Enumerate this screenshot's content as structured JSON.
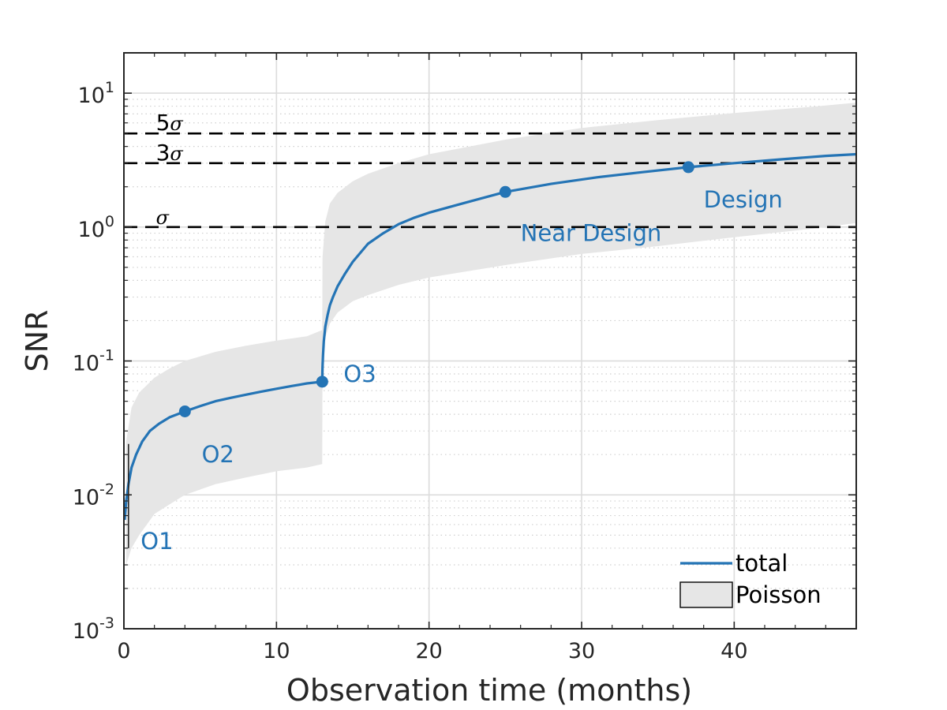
{
  "chart_data": {
    "type": "line",
    "xlabel": "Observation time (months)",
    "ylabel": "SNR",
    "xlim": [
      0,
      48
    ],
    "ylim": [
      0.001,
      20
    ],
    "yscale": "log",
    "grid": true,
    "x_ticks": [
      0,
      10,
      20,
      30,
      40
    ],
    "x_tick_labels": [
      "0",
      "10",
      "20",
      "30",
      "40"
    ],
    "y_ticks": [
      {
        "value": 0.001,
        "base": "10",
        "exp": "-3"
      },
      {
        "value": 0.01,
        "base": "10",
        "exp": "-2"
      },
      {
        "value": 0.1,
        "base": "10",
        "exp": "-1"
      },
      {
        "value": 1,
        "base": "10",
        "exp": "0"
      },
      {
        "value": 10,
        "base": "10",
        "exp": "1"
      }
    ],
    "colors": {
      "line": "#2474b5",
      "band": "#e6e6e6",
      "threshold": "#000000",
      "axis": "#262626",
      "grid": "#dcdcdc"
    },
    "series": [
      {
        "name": "total",
        "x": [
          0.05,
          0.15,
          0.3,
          0.5,
          0.8,
          1.2,
          1.7,
          2.3,
          3.0,
          4.0,
          5.0,
          6.0,
          7.0,
          8.0,
          9.0,
          10.0,
          11.0,
          12.0,
          13.0,
          13.02,
          13.05,
          13.1,
          13.2,
          13.35,
          13.5,
          13.7,
          14.0,
          14.5,
          15.0,
          16.0,
          17.0,
          18.0,
          19.0,
          20.0,
          22.0,
          25.0,
          28.0,
          31.0,
          34.0,
          37.0,
          40.0,
          43.0,
          46.0,
          48.0
        ],
        "y": [
          0.0065,
          0.009,
          0.012,
          0.016,
          0.02,
          0.025,
          0.03,
          0.034,
          0.038,
          0.042,
          0.046,
          0.05,
          0.053,
          0.056,
          0.059,
          0.062,
          0.065,
          0.068,
          0.07,
          0.09,
          0.11,
          0.14,
          0.18,
          0.22,
          0.26,
          0.3,
          0.36,
          0.45,
          0.55,
          0.75,
          0.9,
          1.05,
          1.17,
          1.28,
          1.48,
          1.83,
          2.1,
          2.35,
          2.57,
          2.8,
          3.0,
          3.2,
          3.4,
          3.5
        ]
      }
    ],
    "markers": [
      {
        "label": "O1",
        "x": 0.0,
        "y": 0.0065,
        "label_x": 1.1,
        "label_y": 0.0045,
        "show_dot": false
      },
      {
        "label": "O2",
        "x": 4.0,
        "y": 0.042,
        "label_x": 5.1,
        "label_y": 0.02,
        "show_dot": true
      },
      {
        "label": "O3",
        "x": 13.0,
        "y": 0.07,
        "label_x": 14.4,
        "label_y": 0.08,
        "show_dot": true
      },
      {
        "label": "Near Design",
        "x": 25.0,
        "y": 1.83,
        "label_x": 26.0,
        "label_y": 0.9,
        "show_dot": true
      },
      {
        "label": "Design",
        "x": 37.0,
        "y": 2.8,
        "label_x": 38.0,
        "label_y": 1.6,
        "show_dot": true
      }
    ],
    "band": {
      "name": "Poisson",
      "x": [
        0.15,
        0.5,
        1.0,
        2.0,
        3.0,
        4.0,
        6.0,
        8.0,
        10.0,
        12.0,
        13.0,
        13.02,
        13.2,
        13.5,
        14.0,
        15.0,
        16.0,
        18.0,
        20.0,
        25.0,
        30.0,
        35.0,
        40.0,
        45.0,
        48.0
      ],
      "upper": [
        0.025,
        0.045,
        0.058,
        0.075,
        0.088,
        0.1,
        0.117,
        0.13,
        0.142,
        0.153,
        0.17,
        0.6,
        1.1,
        1.5,
        1.8,
        2.2,
        2.5,
        3.0,
        3.5,
        4.5,
        5.5,
        6.3,
        7.1,
        7.9,
        8.5
      ],
      "lower": [
        0.003,
        0.004,
        0.005,
        0.0072,
        0.0085,
        0.01,
        0.012,
        0.0135,
        0.015,
        0.016,
        0.017,
        0.1,
        0.15,
        0.19,
        0.23,
        0.28,
        0.31,
        0.37,
        0.42,
        0.52,
        0.63,
        0.72,
        0.84,
        0.97,
        1.07
      ]
    },
    "thresholds": [
      {
        "label_pre": "5",
        "label_sym": "σ",
        "value": 5
      },
      {
        "label_pre": "3",
        "label_sym": "σ",
        "value": 3
      },
      {
        "label_pre": "",
        "label_sym": "σ",
        "value": 1
      }
    ],
    "o1_bracket": {
      "x": 0.3,
      "y_low": 0.004,
      "y_high": 0.024
    },
    "legend": {
      "position": "bottom-right",
      "entries": [
        {
          "name": "total",
          "kind": "line"
        },
        {
          "name": "Poisson",
          "kind": "patch"
        }
      ]
    }
  }
}
